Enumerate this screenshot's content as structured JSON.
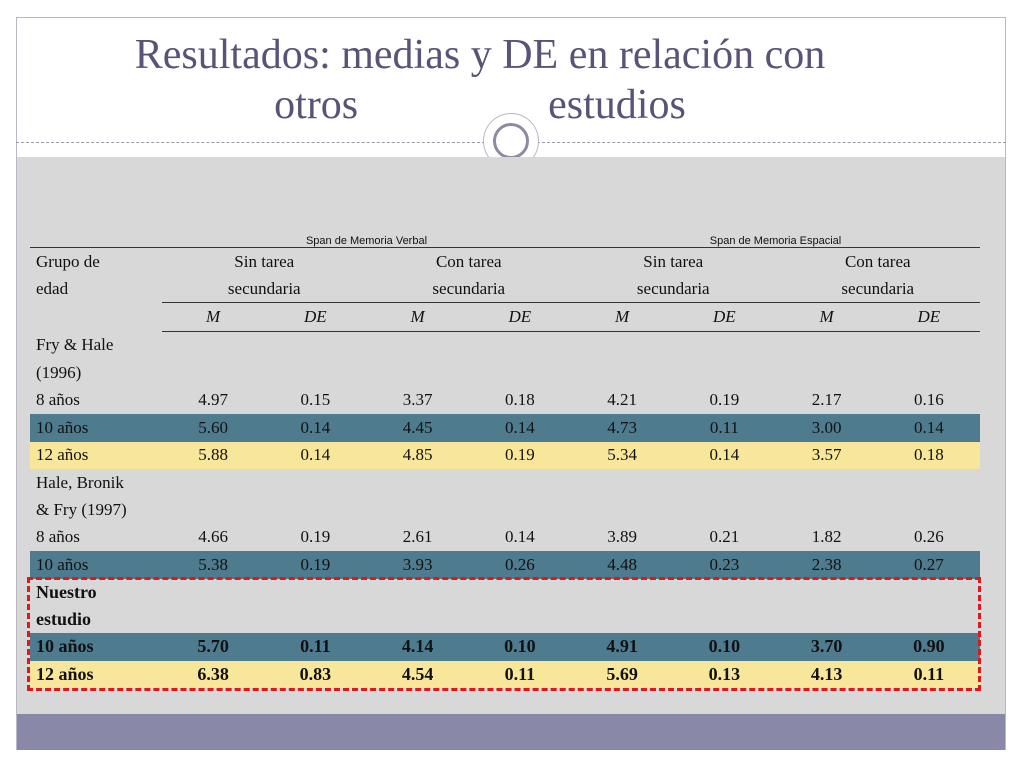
{
  "slide": {
    "title_line1": "Resultados: medias y DE en relación  con",
    "title_line2_a": "otros",
    "title_line2_b": "estudios"
  },
  "table": {
    "span_verbal": "Span de Memoria Verbal",
    "span_espacial": "Span de Memoria Espacial",
    "group_label_1": "Grupo de",
    "group_label_2": "edad",
    "subheads": [
      {
        "l1": "Sin tarea",
        "l2": "secundaria"
      },
      {
        "l1": "Con tarea",
        "l2": "secundaria"
      },
      {
        "l1": "Sin tarea",
        "l2": "secundaria"
      },
      {
        "l1": "Con tarea",
        "l2": "secundaria"
      }
    ],
    "m_label": "M",
    "de_label": "DE",
    "rows": [
      {
        "label": "Fry & Hale",
        "values": [
          "",
          "",
          "",
          "",
          "",
          "",
          "",
          ""
        ],
        "style": "plain"
      },
      {
        "label": "(1996)",
        "values": [
          "",
          "",
          "",
          "",
          "",
          "",
          "",
          ""
        ],
        "style": "plain"
      },
      {
        "label": "8 años",
        "values": [
          "4.97",
          "0.15",
          "3.37",
          "0.18",
          "4.21",
          "0.19",
          "2.17",
          "0.16"
        ],
        "style": "plain"
      },
      {
        "label": "10 años",
        "values": [
          "5.60",
          "0.14",
          "4.45",
          "0.14",
          "4.73",
          "0.11",
          "3.00",
          "0.14"
        ],
        "style": "teal"
      },
      {
        "label": "12 años",
        "values": [
          "5.88",
          "0.14",
          "4.85",
          "0.19",
          "5.34",
          "0.14",
          "3.57",
          "0.18"
        ],
        "style": "yellow"
      },
      {
        "label": "Hale, Bronik",
        "values": [
          "",
          "",
          "",
          "",
          "",
          "",
          "",
          ""
        ],
        "style": "plain"
      },
      {
        "label": "& Fry (1997)",
        "values": [
          "",
          "",
          "",
          "",
          "",
          "",
          "",
          ""
        ],
        "style": "plain"
      },
      {
        "label": "8 años",
        "values": [
          "4.66",
          "0.19",
          "2.61",
          "0.14",
          "3.89",
          "0.21",
          "1.82",
          "0.26"
        ],
        "style": "plain"
      },
      {
        "label": "10 años",
        "values": [
          "5.38",
          "0.19",
          "3.93",
          "0.26",
          "4.48",
          "0.23",
          "2.38",
          "0.27"
        ],
        "style": "teal"
      },
      {
        "label": "Nuestro",
        "values": [
          "",
          "",
          "",
          "",
          "",
          "",
          "",
          ""
        ],
        "style": "ours"
      },
      {
        "label": "estudio",
        "values": [
          "",
          "",
          "",
          "",
          "",
          "",
          "",
          ""
        ],
        "style": "ours"
      },
      {
        "label": "10 años",
        "values": [
          "5.70",
          "0.11",
          "4.14",
          "0.10",
          "4.91",
          "0.10",
          "3.70",
          "0.90"
        ],
        "style": "teal ours"
      },
      {
        "label": "12 años",
        "values": [
          "6.38",
          "0.83",
          "4.54",
          "0.11",
          "5.69",
          "0.13",
          "4.13",
          "0.11"
        ],
        "style": "yellow ours"
      }
    ]
  },
  "colors": {
    "title": "#5b5277",
    "teal_row": "#4f7b8e",
    "yellow_row": "#f8e79a",
    "highlight_box": "#e0181b",
    "content_bg": "#d8d8d8",
    "footer_band": "#8a88a8"
  }
}
